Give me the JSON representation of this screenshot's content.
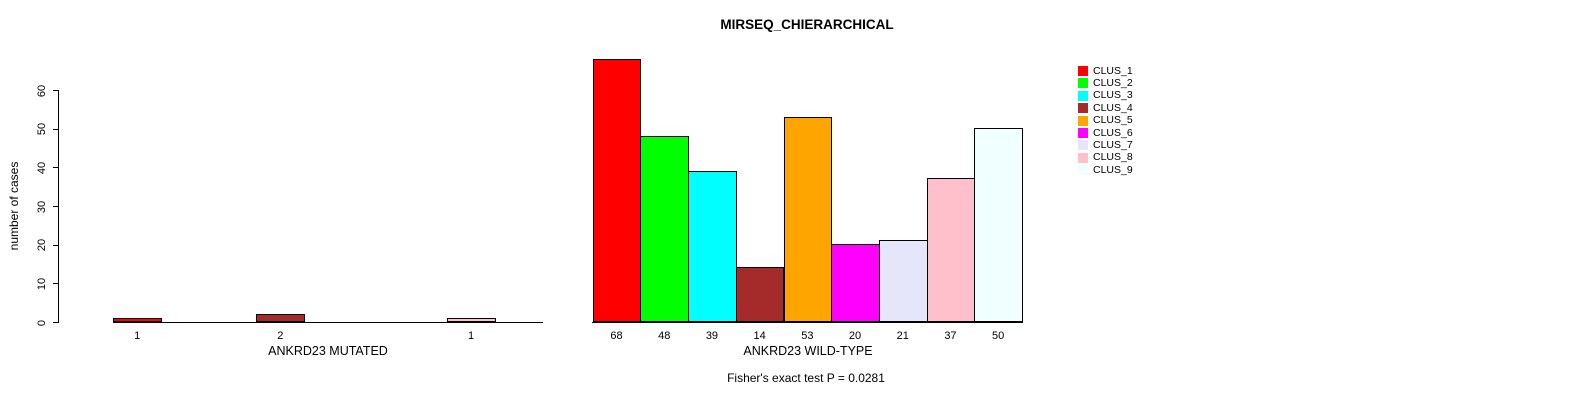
{
  "title": "MIRSEQ_CHIERARCHICAL",
  "subtitle": "Fisher's exact test P = 0.0281",
  "y_axis": {
    "label": "number of cases",
    "ticks": [
      0,
      10,
      20,
      30,
      40,
      50,
      60
    ]
  },
  "legend": {
    "position": "right",
    "entries": [
      {
        "label": "CLUS_1",
        "color": "#FF0000"
      },
      {
        "label": "CLUS_2",
        "color": "#00FF00"
      },
      {
        "label": "CLUS_3",
        "color": "#00FFFF"
      },
      {
        "label": "CLUS_4",
        "color": "#A52A2A"
      },
      {
        "label": "CLUS_5",
        "color": "#FFA500"
      },
      {
        "label": "CLUS_6",
        "color": "#FF00FF"
      },
      {
        "label": "CLUS_7",
        "color": "#E6E6FA"
      },
      {
        "label": "CLUS_8",
        "color": "#FFC0CB"
      },
      {
        "label": "CLUS_9",
        "color": "#F0FFFF"
      }
    ]
  },
  "chart_data": [
    {
      "type": "bar",
      "panel": "left",
      "xlabel": "ANKRD23 MUTATED",
      "ylabel": "number of cases",
      "ylim": [
        0,
        68
      ],
      "grid": false,
      "categories": [
        "CLUS_1",
        "CLUS_2",
        "CLUS_3",
        "CLUS_4",
        "CLUS_5",
        "CLUS_6",
        "CLUS_7",
        "CLUS_8",
        "CLUS_9"
      ],
      "values": [
        1,
        0,
        0,
        2,
        0,
        0,
        0,
        1,
        0
      ],
      "value_labels": [
        "1",
        "",
        "",
        "2",
        "",
        "",
        "",
        "1",
        ""
      ],
      "colors": [
        "#FF0000",
        "#00FF00",
        "#00FFFF",
        "#A52A2A",
        "#FFA500",
        "#FF00FF",
        "#E6E6FA",
        "#FFC0CB",
        "#F0FFFF"
      ]
    },
    {
      "type": "bar",
      "panel": "right",
      "xlabel": "ANKRD23 WILD-TYPE",
      "ylabel": "number of cases",
      "ylim": [
        0,
        68
      ],
      "grid": false,
      "categories": [
        "CLUS_1",
        "CLUS_2",
        "CLUS_3",
        "CLUS_4",
        "CLUS_5",
        "CLUS_6",
        "CLUS_7",
        "CLUS_8",
        "CLUS_9"
      ],
      "values": [
        68,
        48,
        39,
        14,
        53,
        20,
        21,
        37,
        50
      ],
      "value_labels": [
        "68",
        "48",
        "39",
        "14",
        "53",
        "20",
        "21",
        "37",
        "50"
      ],
      "colors": [
        "#FF0000",
        "#00FF00",
        "#00FFFF",
        "#A52A2A",
        "#FFA500",
        "#FF00FF",
        "#E6E6FA",
        "#FFC0CB",
        "#F0FFFF"
      ]
    }
  ]
}
